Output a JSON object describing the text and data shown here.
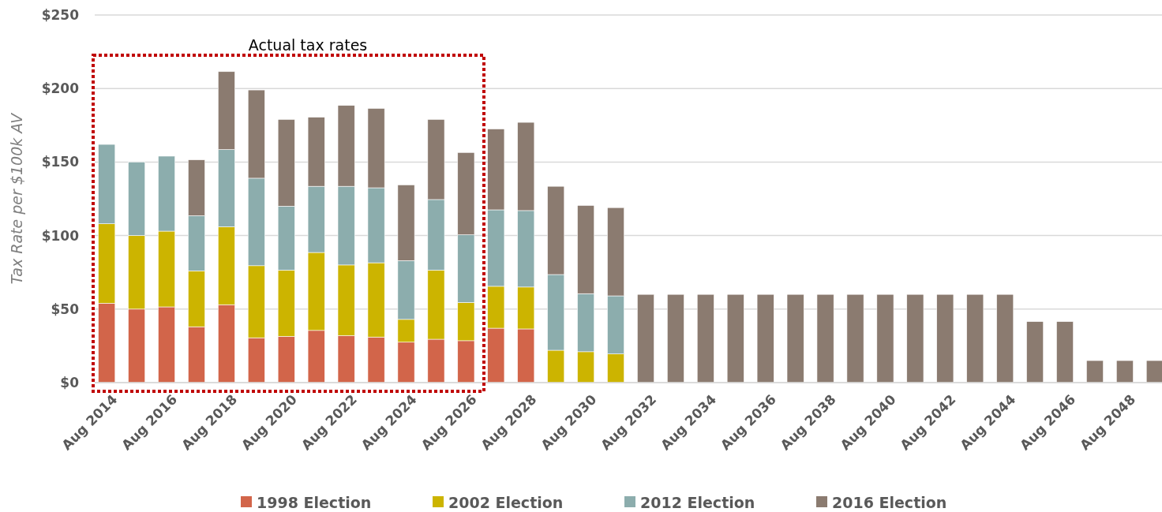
{
  "chart_data": {
    "type": "bar",
    "stacked": true,
    "ylabel": "Tax Rate per $100k AV",
    "categories": [
      "Aug 2014",
      null,
      "Aug 2016",
      null,
      "Aug 2018",
      null,
      "Aug 2020",
      null,
      "Aug 2022",
      null,
      "Aug 2024",
      null,
      "Aug 2026",
      null,
      "Aug 2028",
      null,
      "Aug 2030",
      null,
      "Aug 2032",
      null,
      "Aug 2034",
      null,
      "Aug 2036",
      null,
      "Aug 2038",
      null,
      "Aug 2040",
      null,
      "Aug 2042",
      null,
      "Aug 2044",
      null,
      "Aug 2046",
      null,
      "Aug 2048",
      null
    ],
    "series": [
      {
        "name": "1998 Election",
        "color": "#d2654a",
        "values": [
          54,
          50,
          51.5,
          38,
          53,
          30.5,
          31.5,
          35.5,
          32,
          31,
          27.5,
          29.5,
          28.5,
          37,
          36.5,
          0,
          0,
          0,
          0,
          0,
          0,
          0,
          0,
          0,
          0,
          0,
          0,
          0,
          0,
          0,
          0,
          0,
          0,
          0,
          0,
          0
        ]
      },
      {
        "name": "2002 Election",
        "color": "#ccb400",
        "values": [
          54,
          50,
          51.5,
          38,
          53,
          49,
          45,
          53,
          48,
          50.5,
          15.5,
          47,
          26,
          28.5,
          28.5,
          22,
          21,
          19.5,
          0,
          0,
          0,
          0,
          0,
          0,
          0,
          0,
          0,
          0,
          0,
          0,
          0,
          0,
          0,
          0,
          0,
          0
        ]
      },
      {
        "name": "2012 Election",
        "color": "#8cadad",
        "values": [
          54,
          50,
          51,
          37.5,
          52.5,
          59.5,
          43.5,
          45,
          53.5,
          51,
          40,
          48,
          46,
          52,
          52,
          51.5,
          39.5,
          39.5,
          0,
          0,
          0,
          0,
          0,
          0,
          0,
          0,
          0,
          0,
          0,
          0,
          0,
          0,
          0,
          0,
          0,
          0
        ]
      },
      {
        "name": "2016 Election",
        "color": "#8b7b70",
        "values": [
          0,
          0,
          0,
          38,
          53,
          60,
          59,
          47,
          55,
          54,
          51.5,
          54.5,
          56,
          55,
          60,
          60,
          60,
          60,
          60,
          60,
          60,
          60,
          60,
          60,
          60,
          60,
          60,
          60,
          60,
          60,
          60,
          41.5,
          41.5,
          15,
          15,
          15
        ]
      }
    ],
    "ylim": [
      0,
      250
    ],
    "yticks": [
      {
        "value": 0,
        "label": "$0"
      },
      {
        "value": 50,
        "label": "$50"
      },
      {
        "value": 100,
        "label": "$100"
      },
      {
        "value": 150,
        "label": "$150"
      },
      {
        "value": 200,
        "label": "$200"
      },
      {
        "value": 250,
        "label": "$250"
      }
    ],
    "grid": "y",
    "legend": "bottom",
    "annotations": [
      "Actual tax rates"
    ]
  }
}
